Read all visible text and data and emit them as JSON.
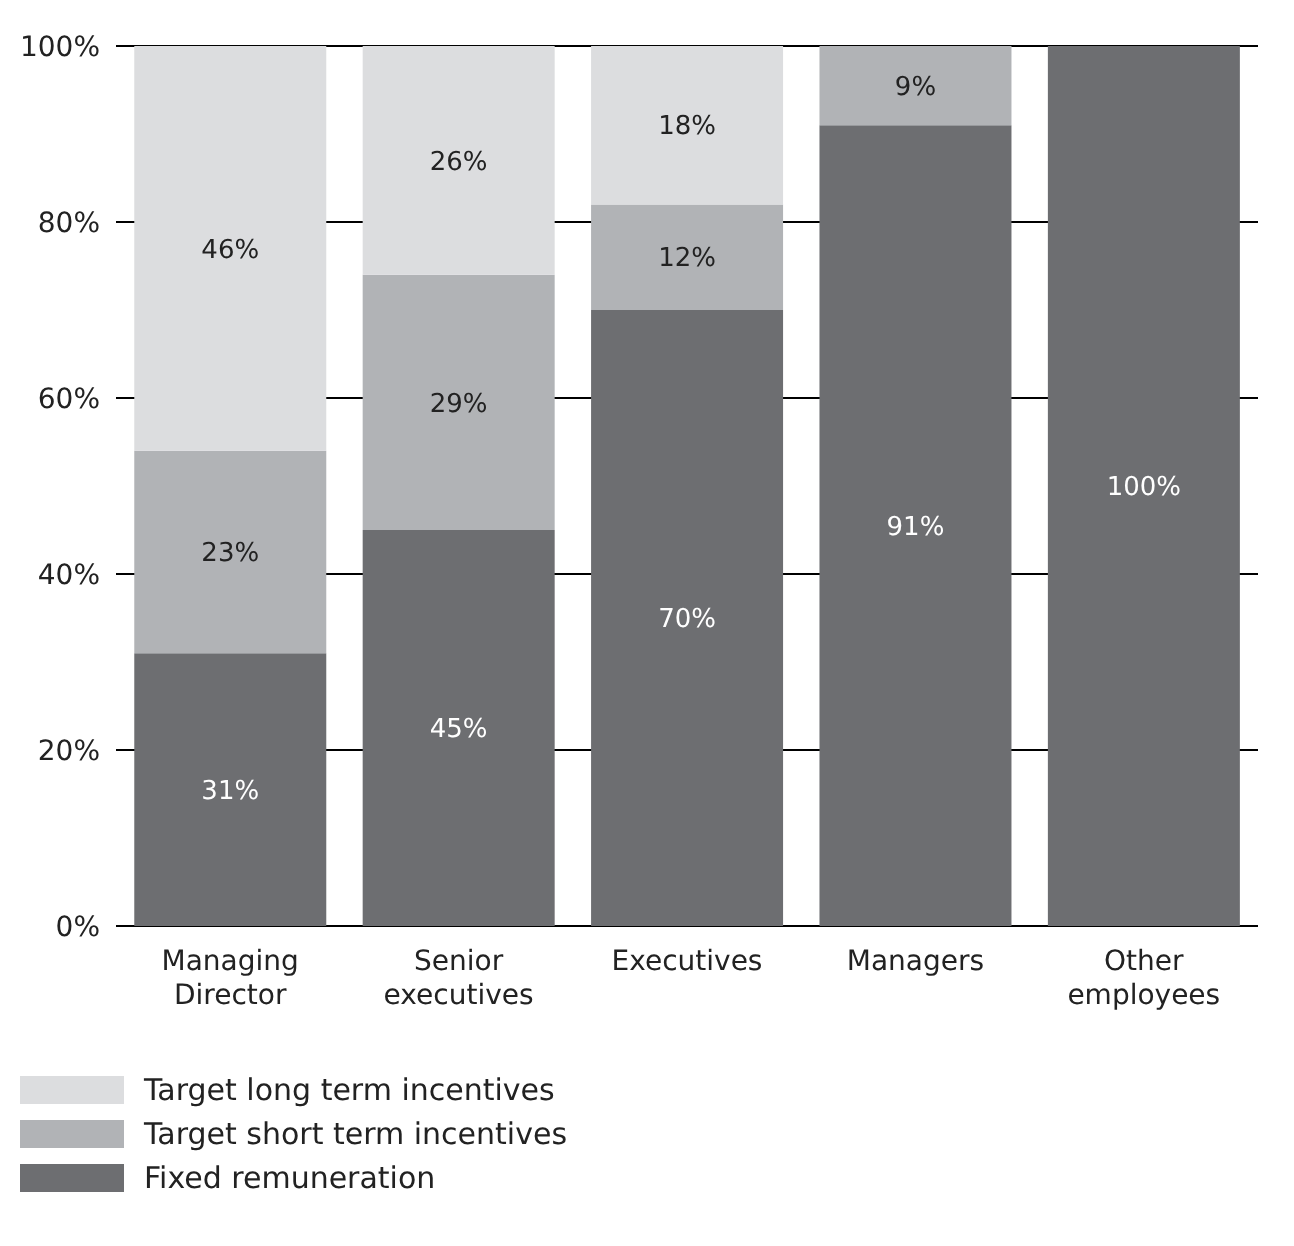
{
  "chart_data": {
    "type": "bar",
    "stacked": true,
    "categories": [
      "Managing Director",
      "Senior executives",
      "Executives",
      "Managers",
      "Other employees"
    ],
    "series": [
      {
        "name": "Fixed remuneration",
        "color": "#6d6e71",
        "values": [
          31,
          45,
          70,
          91,
          100
        ],
        "value_labels": [
          "31%",
          "45%",
          "70%",
          "91%",
          "100%"
        ]
      },
      {
        "name": "Target short term incentives",
        "color": "#b1b3b6",
        "values": [
          23,
          29,
          12,
          9,
          0
        ],
        "value_labels": [
          "23%",
          "29%",
          "12%",
          "9%",
          null
        ]
      },
      {
        "name": "Target long term incentives",
        "color": "#dcdddf",
        "values": [
          46,
          26,
          18,
          0,
          0
        ],
        "value_labels": [
          "46%",
          "26%",
          "18%",
          null,
          null
        ]
      }
    ],
    "ylim": [
      0,
      100
    ],
    "yticks": [
      {
        "value": 0,
        "label": "0%"
      },
      {
        "value": 20,
        "label": "20%"
      },
      {
        "value": 40,
        "label": "40%"
      },
      {
        "value": 60,
        "label": "60%"
      },
      {
        "value": 80,
        "label": "80%"
      },
      {
        "value": 100,
        "label": "100%"
      }
    ],
    "grid": "y",
    "legend": "bottom"
  }
}
